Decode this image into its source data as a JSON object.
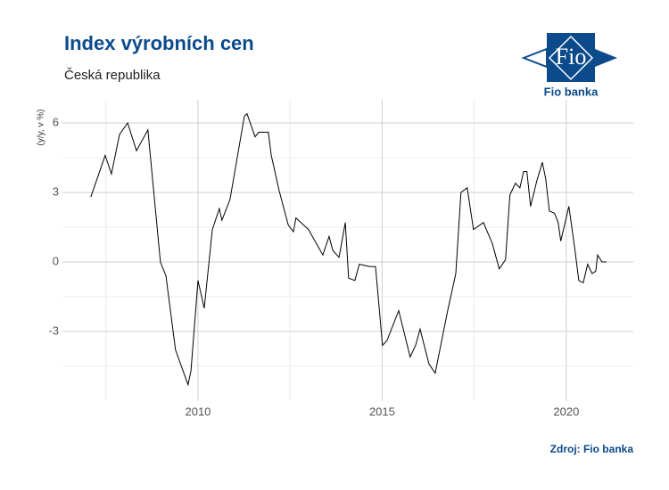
{
  "chart_data": {
    "type": "line",
    "title": "Index výrobních cen",
    "subtitle": "Česká republika",
    "y_label": "(y/y, v %)",
    "source": "Zdroj: Fio banka",
    "x": [
      2007.09,
      2007.48,
      2007.65,
      2007.87,
      2008.09,
      2008.33,
      2008.64,
      2008.98,
      2009.13,
      2009.39,
      2009.73,
      2009.81,
      2010.0,
      2010.17,
      2010.39,
      2010.58,
      2010.65,
      2010.87,
      2011.26,
      2011.33,
      2011.55,
      2011.65,
      2011.91,
      2011.99,
      2012.2,
      2012.45,
      2012.59,
      2012.66,
      2013.0,
      2013.39,
      2013.56,
      2013.66,
      2013.83,
      2014.0,
      2014.09,
      2014.26,
      2014.38,
      2014.67,
      2014.82,
      2015.01,
      2015.13,
      2015.45,
      2015.76,
      2015.91,
      2016.03,
      2016.27,
      2016.44,
      2016.78,
      2017.0,
      2017.14,
      2017.31,
      2017.48,
      2017.75,
      2017.99,
      2018.18,
      2018.35,
      2018.47,
      2018.62,
      2018.74,
      2018.84,
      2018.93,
      2019.03,
      2019.2,
      2019.35,
      2019.44,
      2019.54,
      2019.68,
      2019.78,
      2019.85,
      2020.07,
      2020.22,
      2020.34,
      2020.46,
      2020.58,
      2020.7,
      2020.8,
      2020.85,
      2020.97,
      2021.09
    ],
    "series": [
      {
        "name": "Index výrobních cen",
        "color": "#000000",
        "values": [
          2.8,
          4.6,
          3.8,
          5.5,
          6.0,
          4.8,
          5.7,
          0.0,
          -0.6,
          -3.8,
          -5.3,
          -4.7,
          -0.8,
          -2.0,
          1.4,
          2.3,
          1.8,
          2.7,
          6.3,
          6.4,
          5.4,
          5.6,
          5.6,
          4.6,
          3.1,
          1.6,
          1.3,
          1.9,
          1.4,
          0.3,
          1.1,
          0.5,
          0.2,
          1.7,
          -0.7,
          -0.8,
          -0.1,
          -0.2,
          -0.2,
          -3.6,
          -3.4,
          -2.1,
          -4.1,
          -3.6,
          -2.9,
          -4.4,
          -4.8,
          -2.1,
          -0.5,
          3.0,
          3.2,
          1.4,
          1.7,
          0.8,
          -0.3,
          0.1,
          2.9,
          3.4,
          3.2,
          3.9,
          3.9,
          2.4,
          3.5,
          4.3,
          3.6,
          2.2,
          2.1,
          1.7,
          0.9,
          2.4,
          0.7,
          -0.8,
          -0.9,
          -0.1,
          -0.5,
          -0.4,
          0.3,
          0.0,
          0.0
        ]
      }
    ],
    "xlim": [
      2006.32,
      2021.82
    ],
    "xticks": [
      2010,
      2015,
      2020
    ],
    "xminor": [
      2007.5,
      2012.5,
      2017.5
    ],
    "ylim": [
      -6,
      7
    ],
    "yticks": [
      -3,
      0,
      3,
      6
    ],
    "yminor": [
      -4.5,
      -1.5,
      1.5,
      4.5
    ],
    "grid": true
  },
  "logo": {
    "mark": "Fio",
    "name": "Fio banka"
  }
}
